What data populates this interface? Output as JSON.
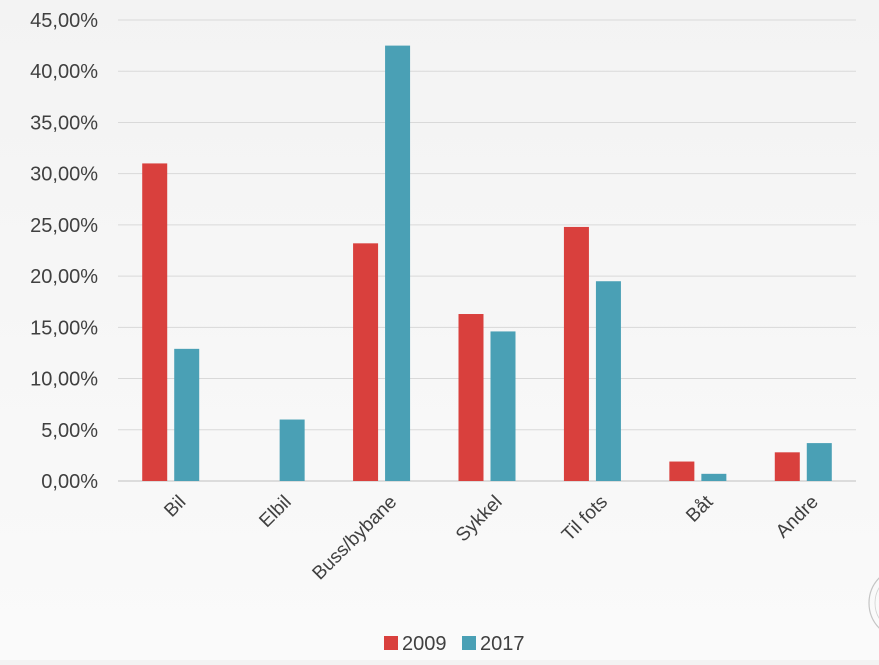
{
  "chart_data": {
    "type": "bar",
    "categories": [
      "Bil",
      "Elbil",
      "Buss/bybane",
      "Sykkel",
      "Til fots",
      "Båt",
      "Andre"
    ],
    "series": [
      {
        "name": "2009",
        "color": "#d9403d",
        "values": [
          31.0,
          0.0,
          23.2,
          16.3,
          24.8,
          1.9,
          2.8
        ]
      },
      {
        "name": "2017",
        "color": "#4aa0b5",
        "values": [
          12.9,
          6.0,
          42.5,
          14.6,
          19.5,
          0.7,
          3.7
        ]
      }
    ],
    "ylim": [
      0,
      45
    ],
    "ytick_step": 5,
    "ytick_labels": [
      "0,00%",
      "5,00%",
      "10,00%",
      "15,00%",
      "20,00%",
      "25,00%",
      "30,00%",
      "35,00%",
      "40,00%",
      "45,00%"
    ],
    "title": "",
    "xlabel": "",
    "ylabel": "",
    "grid": true,
    "legend_position": "bottom"
  }
}
